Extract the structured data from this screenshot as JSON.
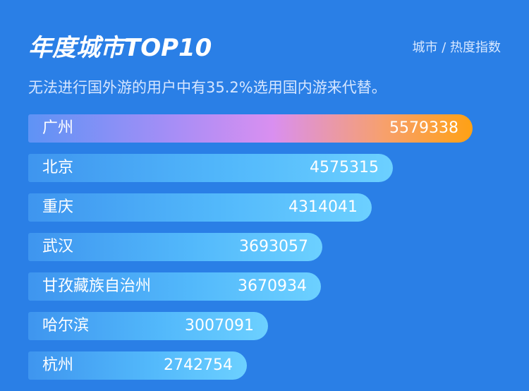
{
  "header": {
    "title": "年度城市TOP10",
    "unit_label": "城市 / 热度指数",
    "subtitle": "无法进行国外游的用户中有35.2%选用国内游来代替。"
  },
  "colors": {
    "background": "#2a7fe6",
    "bar_start": "#5e93f5",
    "bar_end": "#6cd0ff",
    "top_bar_mid": "#d98ff0",
    "top_bar_end": "#ffa114"
  },
  "chart_data": {
    "type": "bar",
    "orientation": "horizontal",
    "title": "年度城市TOP10",
    "xlabel": "",
    "ylabel": "",
    "categories": [
      "广州",
      "北京",
      "重庆",
      "武汉",
      "甘孜藏族自治州",
      "哈尔滨",
      "杭州"
    ],
    "values": [
      5579338,
      4575315,
      4314041,
      3693057,
      3670934,
      3007091,
      2742754
    ],
    "value_labels": [
      "5579338",
      "4575315",
      "4314041",
      "3693057",
      "3670934",
      "3007091",
      "2742754"
    ],
    "grid": false,
    "legend": "none"
  }
}
